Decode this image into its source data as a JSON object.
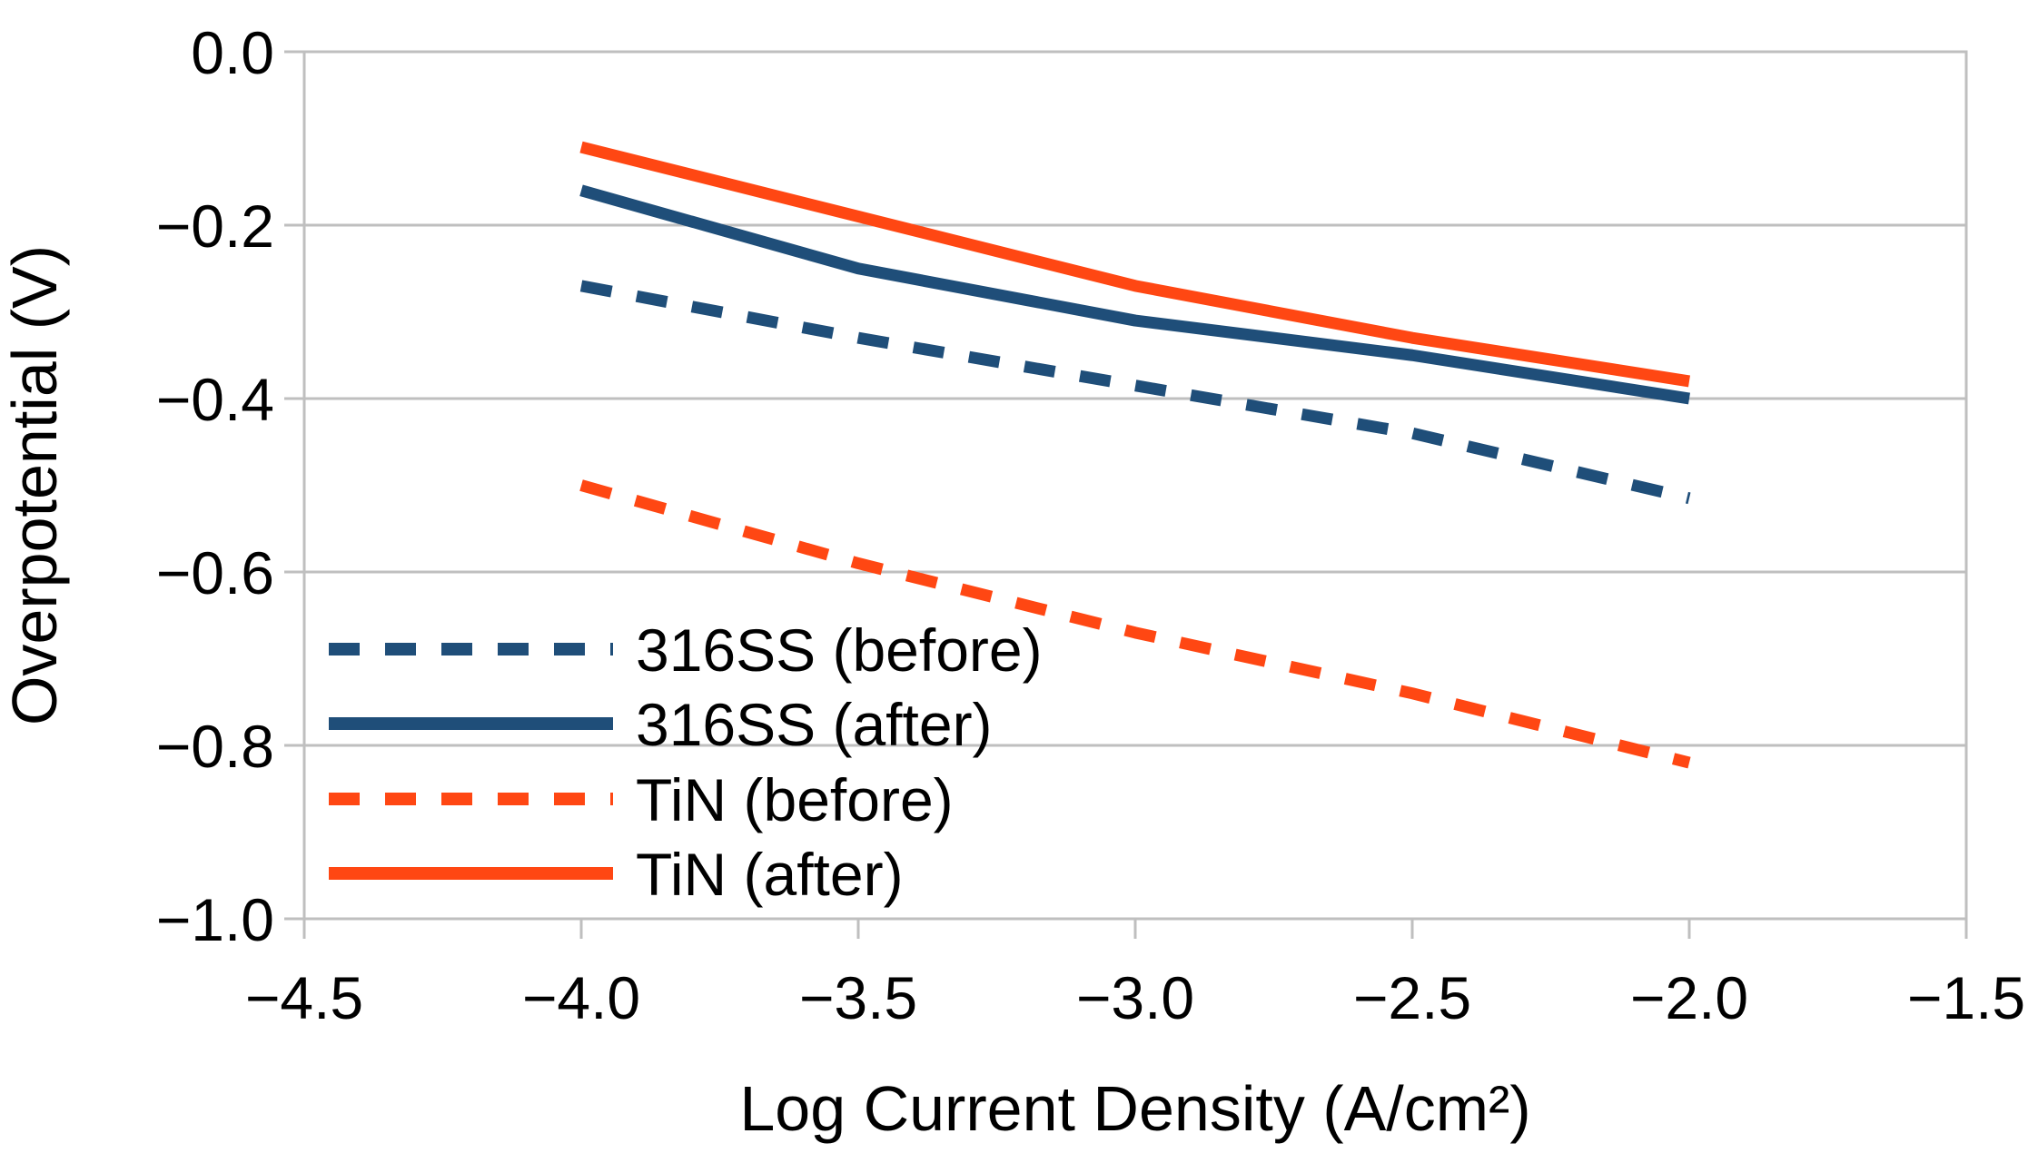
{
  "chart_data": {
    "type": "line",
    "title": "",
    "xlabel": "Log Current Density (A/cm²)",
    "ylabel": "Overpotential (V)",
    "xlim": [
      -4.5,
      -1.5
    ],
    "ylim": [
      -1.0,
      0.0
    ],
    "x_ticks": [
      -4.5,
      -4.0,
      -3.5,
      -3.0,
      -2.5,
      -2.0,
      -1.5
    ],
    "x_tick_labels": [
      "−4.5",
      "−4.0",
      "−3.5",
      "−3.0",
      "−2.5",
      "−2.0",
      "−1.5"
    ],
    "y_ticks": [
      0.0,
      -0.2,
      -0.4,
      -0.6,
      -0.8,
      -1.0
    ],
    "y_tick_labels": [
      "0.0",
      "−0.2",
      "−0.4",
      "−0.6",
      "−0.8",
      "−1.0"
    ],
    "grid": "horizontal-only",
    "legend_position": "inside-bottom-left",
    "x": [
      -4.0,
      -3.5,
      -3.0,
      -2.5,
      -2.0
    ],
    "series": [
      {
        "name": "316SS (before)",
        "style": "dashed",
        "color": "#1F4E79",
        "values": [
          -0.27,
          -0.33,
          -0.385,
          -0.44,
          -0.515
        ]
      },
      {
        "name": "316SS (after)",
        "style": "solid",
        "color": "#1F4E79",
        "values": [
          -0.16,
          -0.25,
          -0.31,
          -0.35,
          -0.4
        ]
      },
      {
        "name": "TiN (before)",
        "style": "dashed",
        "color": "#FF4713",
        "values": [
          -0.5,
          -0.59,
          -0.67,
          -0.74,
          -0.82
        ]
      },
      {
        "name": "TiN (after)",
        "style": "solid",
        "color": "#FF4713",
        "values": [
          -0.11,
          -0.19,
          -0.27,
          -0.33,
          -0.38
        ]
      }
    ],
    "colors": {
      "grid": "#BFBFBF",
      "text": "#000000",
      "background": "#FFFFFF",
      "accent_blue": "#1F4E79",
      "accent_orange": "#FF4713"
    }
  }
}
